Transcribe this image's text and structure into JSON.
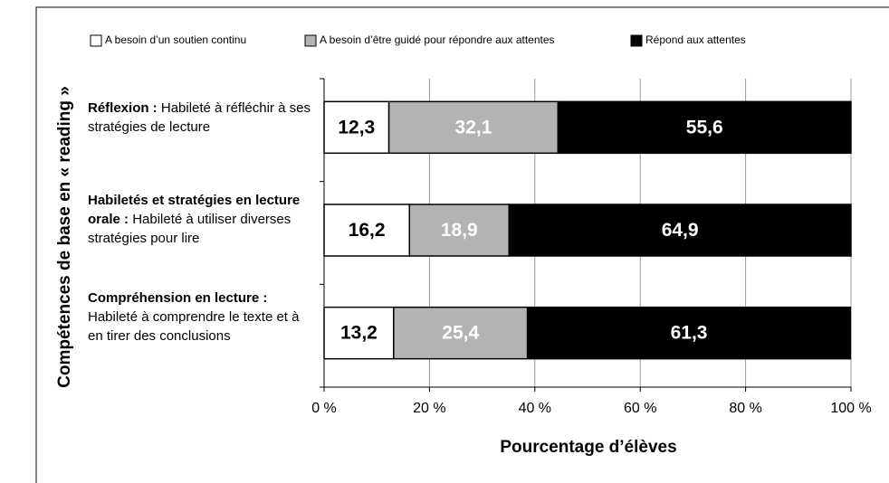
{
  "chart_data": {
    "type": "stacked_barh",
    "ylabel": "Compétences de base en « reading »",
    "xlabel": "Pourcentage d’élèves",
    "categories": [
      {
        "bold": "Réflexion :",
        "text": "Habileté à réfléchir à ses stratégies de lecture"
      },
      {
        "bold": "Habiletés et stratégies en lecture orale :",
        "text": "Habileté à utiliser diverses stratégies pour lire"
      },
      {
        "bold": "Compréhension en lecture :",
        "text": "Habileté à comprendre le texte et à en tirer des conclusions"
      }
    ],
    "series": [
      {
        "name": "A besoin d’un soutien continu",
        "color": "#ffffff",
        "label_color": "#000000",
        "values": [
          12.3,
          16.2,
          13.2
        ],
        "value_labels": [
          "12,3",
          "16,2",
          "13,2"
        ]
      },
      {
        "name": "A besoin d’être guidé pour répondre aux attentes",
        "color": "#b3b3b3",
        "label_color": "#ffffff",
        "values": [
          32.1,
          18.9,
          25.4
        ],
        "value_labels": [
          "32,1",
          "18,9",
          "25,4"
        ]
      },
      {
        "name": "Répond aux attentes",
        "color": "#000000",
        "label_color": "#ffffff",
        "values": [
          55.6,
          64.9,
          61.3
        ],
        "value_labels": [
          "55,6",
          "64,9",
          "61,3"
        ]
      }
    ],
    "xlim": [
      0,
      100
    ],
    "xticks": [
      {
        "value": 0,
        "label": "0 %"
      },
      {
        "value": 20,
        "label": "20 %"
      },
      {
        "value": 40,
        "label": "40 %"
      },
      {
        "value": 60,
        "label": "60 %"
      },
      {
        "value": 80,
        "label": "80 %"
      },
      {
        "value": 100,
        "label": "100 %"
      }
    ],
    "grid": true
  }
}
